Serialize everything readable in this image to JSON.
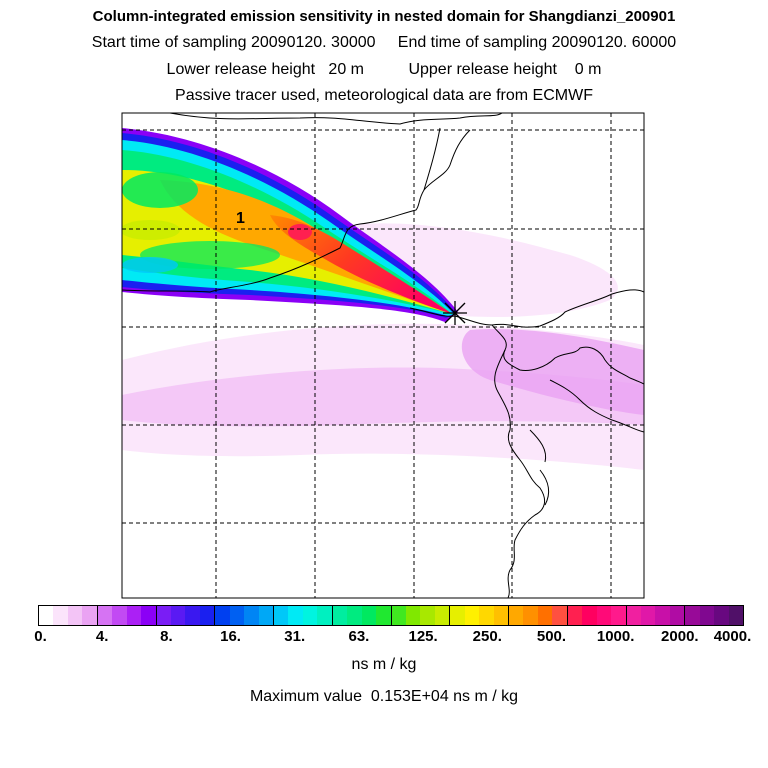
{
  "title": {
    "line1": "Column-integrated emission sensitivity in nested domain for Shangdianzi_200901",
    "line2": "Start time of sampling 20090120. 30000     End time of sampling 20090120. 60000",
    "line3": "Lower release height   20 m          Upper release height    0 m",
    "line4": "Passive tracer used, meteorological data are from ECMWF"
  },
  "map": {
    "receptor_label": "1",
    "receptor_marker": "asterisk-icon"
  },
  "colorbar": {
    "unit": "ns m / kg",
    "tick_labels": [
      "0.",
      "4.",
      "8.",
      "16.",
      "31.",
      "63.",
      "125.",
      "250.",
      "500.",
      "1000.",
      "2000.",
      "4000."
    ],
    "colors": [
      "#ffffff",
      "#fbe4fb",
      "#f3c4f6",
      "#eaa3f3",
      "#d673f3",
      "#c24af3",
      "#ab20f5",
      "#8b00f6",
      "#7a1df5",
      "#5a1af3",
      "#3a18f0",
      "#1a20f0",
      "#0040f0",
      "#0060f2",
      "#0085f4",
      "#00a8f6",
      "#00c8f8",
      "#00eaf5",
      "#00f4e0",
      "#00f0c0",
      "#00eda0",
      "#00eb80",
      "#00e960",
      "#20e830",
      "#40e820",
      "#80e800",
      "#a8e800",
      "#c8ec00",
      "#e6ef00",
      "#fff000",
      "#ffd800",
      "#ffc000",
      "#ffa800",
      "#ff9000",
      "#ff7000",
      "#ff5040",
      "#ff2050",
      "#ff0060",
      "#ff0a78",
      "#ff1a8c",
      "#f020a0",
      "#e018a8",
      "#c810a8",
      "#b00ca4",
      "#980a98",
      "#800890",
      "#680880",
      "#501068"
    ]
  },
  "max_value_text": "Maximum value  0.153E+04 ns m / kg"
}
